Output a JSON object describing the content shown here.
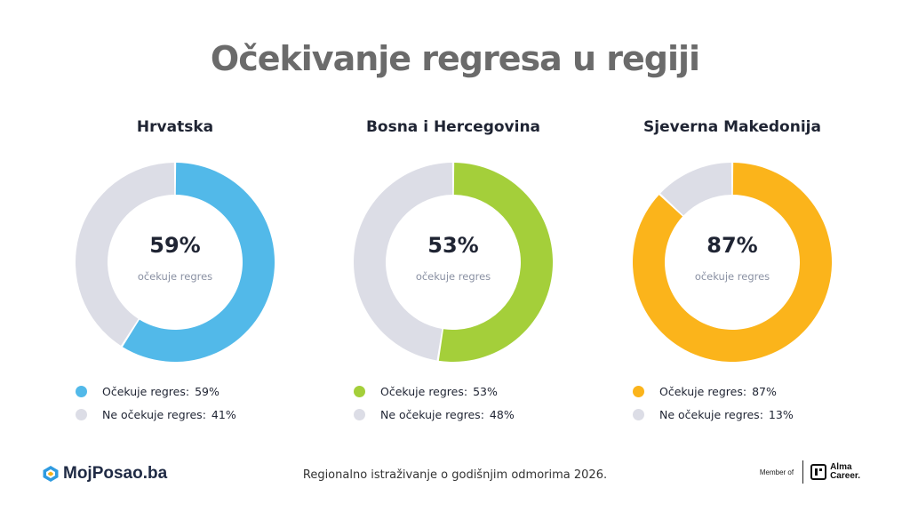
{
  "page": {
    "title": "Očekivanje regresa u regiji",
    "footer": "Regionalno istraživanje o godišnjim odmorima 2026.",
    "logo": "MojPosao.ba",
    "member_label": "Member of",
    "member_org_line1": "Alma",
    "member_org_line2": "Career."
  },
  "chart_data": [
    {
      "type": "pie",
      "title": "Hrvatska",
      "center_value": "59%",
      "center_label": "očekuje regres",
      "slices": [
        {
          "label": "Očekuje regres:",
          "value": 59,
          "display": "59%",
          "color": "#52b9e9"
        },
        {
          "label": "Ne očekuje regres:",
          "value": 41,
          "display": "41%",
          "color": "#dcdde6"
        }
      ]
    },
    {
      "type": "pie",
      "title": "Bosna i Hercegovina",
      "center_value": "53%",
      "center_label": "očekuje regres",
      "slices": [
        {
          "label": "Očekuje regres:",
          "value": 53,
          "display": "53%",
          "color": "#a4cf3a"
        },
        {
          "label": "Ne očekuje regres:",
          "value": 48,
          "display": "48%",
          "color": "#dcdde6"
        }
      ]
    },
    {
      "type": "pie",
      "title": "Sjeverna Makedonija",
      "center_value": "87%",
      "center_label": "očekuje regres",
      "slices": [
        {
          "label": "Očekuje regres:",
          "value": 87,
          "display": "87%",
          "color": "#fbb41b"
        },
        {
          "label": "Ne očekuje regres:",
          "value": 13,
          "display": "13%",
          "color": "#dcdde6"
        }
      ]
    }
  ]
}
